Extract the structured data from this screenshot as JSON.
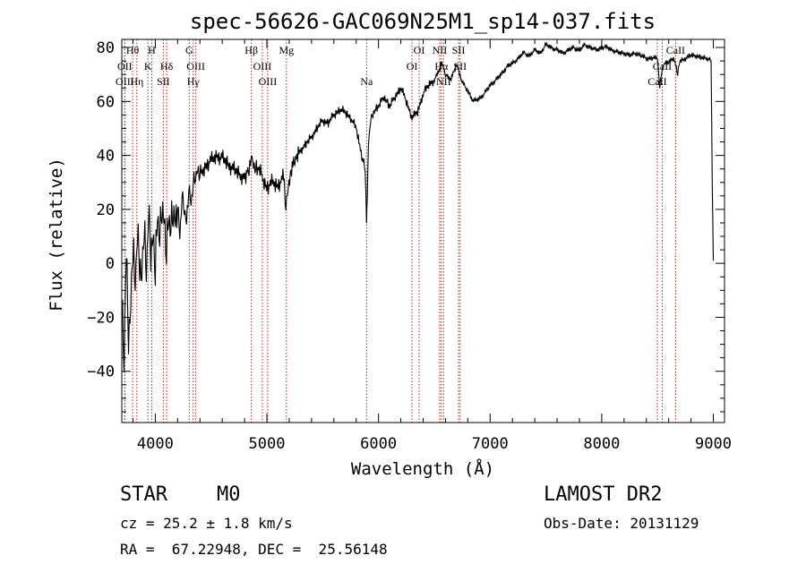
{
  "chart_data": {
    "type": "line",
    "title": "spec-56626-GAC069N25M1_sp14-037.fits",
    "xlabel": "Wavelength (Å)",
    "ylabel": "Flux (relative)",
    "xlim": [
      3700,
      9100
    ],
    "ylim": [
      -59,
      83
    ],
    "xticks": [
      4000,
      5000,
      6000,
      7000,
      8000,
      9000
    ],
    "yticks": [
      -40,
      -20,
      0,
      20,
      40,
      60,
      80
    ],
    "xtick_labels": [
      "4000",
      "5000",
      "6000",
      "7000",
      "8000",
      "9000"
    ],
    "ytick_labels": [
      "−40",
      "−20",
      "0",
      "20",
      "40",
      "60",
      "80"
    ],
    "grid": false,
    "line_color": "#000000",
    "marker_color": "#b22222",
    "series": [
      {
        "x": [
          3700,
          3720,
          3740,
          3760,
          3780,
          3800,
          3820,
          3840,
          3860,
          3880,
          3900,
          3920,
          3940,
          3960,
          3980,
          4000,
          4020,
          4040,
          4060,
          4080,
          4100,
          4120,
          4140,
          4160,
          4180,
          4200,
          4220,
          4240,
          4260,
          4280,
          4300,
          4320,
          4340,
          4360,
          4380,
          4400,
          4450,
          4500,
          4550,
          4600,
          4650,
          4700,
          4750,
          4800,
          4840,
          4860,
          4880,
          4900,
          4950,
          5000,
          5050,
          5100,
          5150,
          5170,
          5190,
          5210,
          5250,
          5300,
          5350,
          5400,
          5450,
          5500,
          5550,
          5600,
          5650,
          5700,
          5750,
          5800,
          5850,
          5880,
          5893,
          5900,
          5910,
          5930,
          5950,
          6000,
          6050,
          6100,
          6150,
          6200,
          6250,
          6300,
          6350,
          6400,
          6450,
          6500,
          6550,
          6560,
          6600,
          6650,
          6700,
          6750,
          6800,
          6850,
          6900,
          6950,
          7000,
          7050,
          7100,
          7150,
          7200,
          7250,
          7300,
          7350,
          7400,
          7450,
          7500,
          7550,
          7600,
          7650,
          7700,
          7750,
          7800,
          7850,
          7900,
          7950,
          8000,
          8050,
          8100,
          8150,
          8200,
          8250,
          8300,
          8350,
          8400,
          8450,
          8500,
          8520,
          8540,
          8560,
          8600,
          8650,
          8680,
          8700,
          8750,
          8800,
          8850,
          8900,
          8950,
          8980,
          8990,
          9000
        ],
        "y": [
          -10,
          -35,
          5,
          -25,
          -15,
          8,
          -5,
          10,
          2,
          -5,
          15,
          -2,
          18,
          5,
          10,
          -2,
          20,
          8,
          22,
          15,
          5,
          18,
          12,
          20,
          14,
          22,
          10,
          25,
          20,
          15,
          28,
          22,
          30,
          32,
          35,
          33,
          36,
          38,
          40,
          39,
          37,
          35,
          33,
          32,
          35,
          40,
          38,
          36,
          33,
          28,
          30,
          29,
          32,
          21,
          28,
          34,
          38,
          42,
          44,
          47,
          50,
          53,
          52,
          55,
          57,
          56,
          54,
          50,
          40,
          35,
          15,
          25,
          45,
          53,
          56,
          58,
          62,
          58,
          62,
          65,
          60,
          54,
          56,
          63,
          66,
          68,
          72,
          75,
          70,
          68,
          74,
          67,
          64,
          60,
          61,
          63,
          66,
          68,
          70,
          73,
          74,
          76,
          78,
          77,
          79,
          78,
          81,
          80,
          79,
          78,
          79,
          80,
          79,
          81,
          80,
          79,
          80,
          80,
          79,
          78,
          78,
          77,
          78,
          77,
          76,
          76,
          76,
          65,
          72,
          74,
          75,
          76,
          70,
          75,
          76,
          77,
          77,
          76,
          76,
          75,
          30,
          1
        ]
      }
    ],
    "line_markers": [
      {
        "x": 3797,
        "label": "Hθ",
        "row": 0
      },
      {
        "x": 3727,
        "label": "OII",
        "row": 1
      },
      {
        "x": 3727,
        "label": "OIII",
        "row": 2
      },
      {
        "x": 3835,
        "label": "Hη",
        "row": 2
      },
      {
        "x": 3934,
        "label": "K",
        "row": 1
      },
      {
        "x": 3968,
        "label": "H",
        "row": 0
      },
      {
        "x": 4102,
        "label": "Hδ",
        "row": 1
      },
      {
        "x": 4072,
        "label": "SII",
        "row": 2
      },
      {
        "x": 4304,
        "label": "G",
        "row": 0
      },
      {
        "x": 4363,
        "label": "OIII",
        "row": 1
      },
      {
        "x": 4340,
        "label": "Hγ",
        "row": 2
      },
      {
        "x": 4861,
        "label": "Hβ",
        "row": 0
      },
      {
        "x": 4959,
        "label": "OIII",
        "row": 1
      },
      {
        "x": 5007,
        "label": "OIII",
        "row": 2
      },
      {
        "x": 5175,
        "label": "Mg",
        "row": 0
      },
      {
        "x": 5893,
        "label": "Na",
        "row": 2
      },
      {
        "x": 6300,
        "label": "OI",
        "row": 1
      },
      {
        "x": 6364,
        "label": "OI",
        "row": 0
      },
      {
        "x": 6548,
        "label": "NII",
        "row": 0
      },
      {
        "x": 6563,
        "label": "Hα",
        "row": 1
      },
      {
        "x": 6583,
        "label": "NII",
        "row": 2
      },
      {
        "x": 6717,
        "label": "SII",
        "row": 0
      },
      {
        "x": 6731,
        "label": "SII",
        "row": 1
      },
      {
        "x": 8498,
        "label": "CaII",
        "row": 2
      },
      {
        "x": 8542,
        "label": "CaII",
        "row": 1
      },
      {
        "x": 8662,
        "label": "CaII",
        "row": 0
      }
    ]
  },
  "info": {
    "object_class": "STAR",
    "subclass": "M0",
    "survey": "LAMOST DR2",
    "velocity": "cz = 25.2 ± 1.8 km/s",
    "obs_date": "Obs-Date: 20131129",
    "coords": "RA =  67.22948, DEC =  25.56148"
  }
}
